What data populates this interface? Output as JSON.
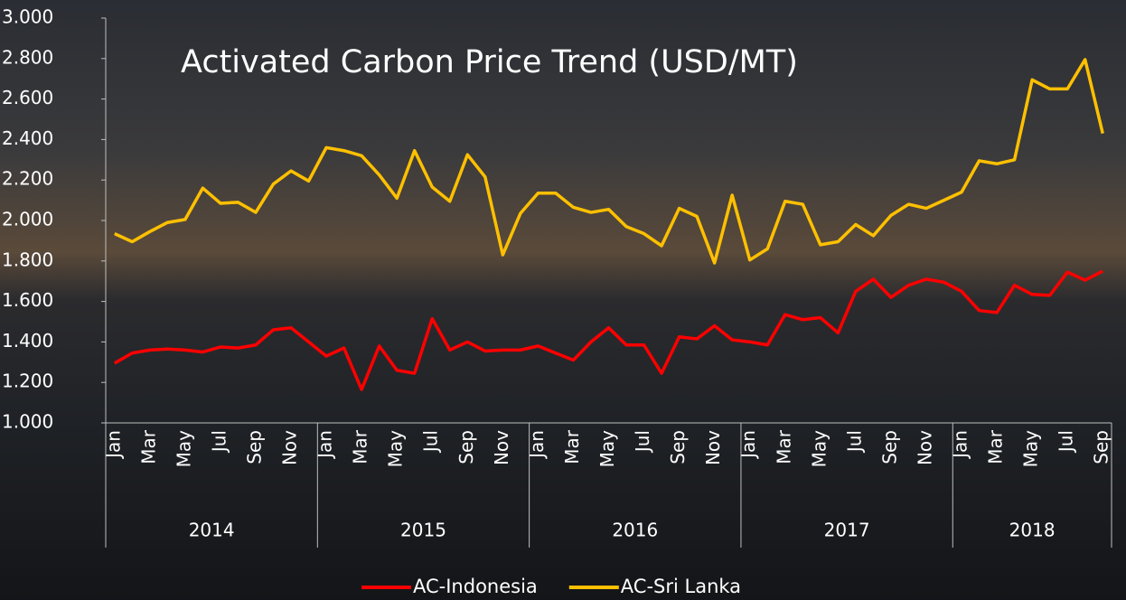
{
  "chart_data": {
    "type": "line",
    "title": "Activated Carbon Price Trend (USD/MT)",
    "categories": [
      "Jan",
      null,
      "Mar",
      null,
      "May",
      null,
      "Jul",
      null,
      "Sep",
      null,
      "Nov",
      null,
      "Jan",
      null,
      "Mar",
      null,
      "May",
      null,
      "Jul",
      null,
      "Sep",
      null,
      "Nov",
      null,
      "Jan",
      null,
      "Mar",
      null,
      "May",
      null,
      "Jul",
      null,
      "Sep",
      null,
      "Nov",
      null,
      "Jan",
      null,
      "Mar",
      null,
      "May",
      null,
      "Jul",
      null,
      "Sep",
      null,
      "Nov",
      null,
      "Jan",
      null,
      "Mar",
      null,
      "May",
      null,
      "Jul",
      null,
      "Sep"
    ],
    "x_groups": [
      "2014",
      "2015",
      "2016",
      "2017",
      "2018"
    ],
    "series": [
      {
        "name": "AC-Indonesia",
        "color": "#ff0000",
        "values": [
          1295,
          1345,
          1360,
          1365,
          1360,
          1350,
          1375,
          1370,
          1385,
          1460,
          1470,
          1400,
          1330,
          1370,
          1165,
          1380,
          1260,
          1245,
          1515,
          1360,
          1400,
          1355,
          1360,
          1360,
          1380,
          1345,
          1310,
          1400,
          1470,
          1385,
          1385,
          1245,
          1425,
          1415,
          1480,
          1410,
          1400,
          1385,
          1535,
          1510,
          1520,
          1445,
          1650,
          1710,
          1620,
          1680,
          1710,
          1695,
          1650,
          1555,
          1545,
          1680,
          1635,
          1630,
          1745,
          1705,
          1750
        ]
      },
      {
        "name": "AC-Sri Lanka",
        "color": "#ffc000",
        "values": [
          1935,
          1895,
          1945,
          1990,
          2005,
          2160,
          2085,
          2090,
          2040,
          2180,
          2245,
          2195,
          2360,
          2345,
          2320,
          2225,
          2110,
          2345,
          2165,
          2095,
          2325,
          2215,
          1830,
          2035,
          2135,
          2135,
          2065,
          2040,
          2055,
          1970,
          1935,
          1875,
          2060,
          2020,
          1790,
          2125,
          1805,
          1860,
          2095,
          2080,
          1880,
          1895,
          1980,
          1925,
          2025,
          2080,
          2060,
          2100,
          2140,
          2295,
          2280,
          2300,
          2695,
          2650,
          2650,
          2795,
          2430
        ]
      }
    ],
    "ylim": [
      1000,
      3000
    ],
    "yticks": [
      {
        "value": 1000,
        "label": "1.000"
      },
      {
        "value": 1200,
        "label": "1.200"
      },
      {
        "value": 1400,
        "label": "1.400"
      },
      {
        "value": 1600,
        "label": "1.600"
      },
      {
        "value": 1800,
        "label": "1.800"
      },
      {
        "value": 2000,
        "label": "2.000"
      },
      {
        "value": 2200,
        "label": "2.200"
      },
      {
        "value": 2400,
        "label": "2.400"
      },
      {
        "value": 2600,
        "label": "2.600"
      },
      {
        "value": 2800,
        "label": "2.800"
      },
      {
        "value": 3000,
        "label": "3.000"
      }
    ],
    "grid": false,
    "legend": "bottom"
  }
}
